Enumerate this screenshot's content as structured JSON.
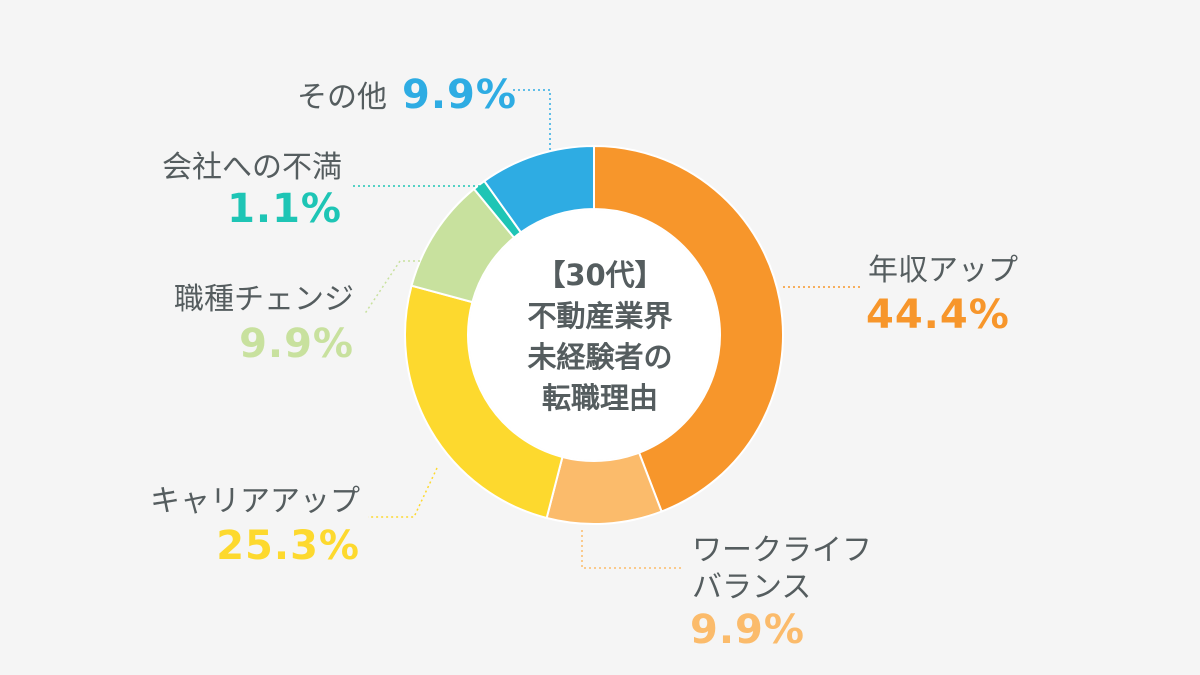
{
  "chart_data": {
    "type": "pie",
    "title": "【30代】不動産業界未経験者の転職理由",
    "title_lines": [
      "【30代】",
      "不動産業界",
      "未経験者の",
      "転職理由"
    ],
    "donut": true,
    "slices": [
      {
        "label": "年収アップ",
        "value": 44.4,
        "value_label": "44.4%",
        "color": "#f7962b"
      },
      {
        "label": "ワークライフバランス",
        "value": 9.9,
        "value_label": "9.9%",
        "color": "#fbbb6b",
        "label_lines": [
          "ワークライフ",
          "バランス"
        ]
      },
      {
        "label": "キャリアアップ",
        "value": 25.3,
        "value_label": "25.3%",
        "color": "#fdd92e"
      },
      {
        "label": "職種チェンジ",
        "value": 9.9,
        "value_label": "9.9%",
        "color": "#c8e19e"
      },
      {
        "label": "会社への不満",
        "value": 1.1,
        "value_label": "1.1%",
        "color": "#1ec5b5"
      },
      {
        "label": "その他",
        "value": 9.9,
        "value_label": "9.9%",
        "color": "#2eace3"
      }
    ],
    "legend": "none"
  }
}
